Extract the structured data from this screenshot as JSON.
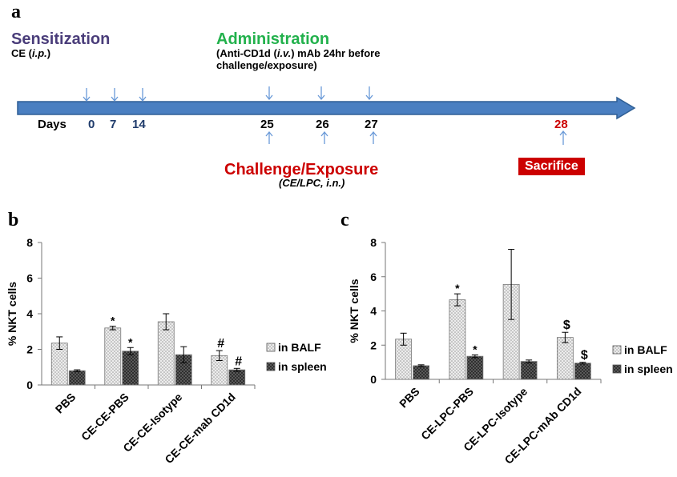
{
  "panel_a": {
    "letter": "a",
    "sensitization_title": "Sensitization",
    "sensitization_route_prefix": "CE (",
    "sensitization_route_italic": "i.p.",
    "sensitization_route_suffix": ")",
    "administration_title": "Administration",
    "administration_line1_a": "(Anti-CD1d (",
    "administration_line1_italic": "i.v.",
    "administration_line1_b": ") mAb 24hr before",
    "administration_line2": "challenge/exposure)",
    "days_label": "Days",
    "sensitization_days": [
      "0",
      "7",
      "14"
    ],
    "challenge_days": [
      "25",
      "26",
      "27"
    ],
    "sacrifice_day": "28",
    "challenge_title": "Challenge/Exposure",
    "challenge_sub": "(CE/LPC, i.n.)",
    "sacrifice_label": "Sacrifice",
    "colors": {
      "arrow_fill": "#4a7fc1",
      "arrow_stroke": "#2f5f95",
      "tick_arrow": "#6a9ad8"
    }
  },
  "panel_b": {
    "letter": "b"
  },
  "panel_c": {
    "letter": "c"
  },
  "chart_data": [
    {
      "type": "bar",
      "panel": "b",
      "ylabel": "% NKT cells",
      "ylim": [
        0,
        8
      ],
      "yticks": [
        "0",
        "2",
        "4",
        "6",
        "8"
      ],
      "categories": [
        "PBS",
        "CE-CE-PBS",
        "CE-CE-Isotype",
        "CE-CE-mab CD1d"
      ],
      "series": [
        {
          "name": "in BALF",
          "values": [
            2.35,
            3.2,
            3.55,
            1.65
          ],
          "errors": [
            0.35,
            0.1,
            0.45,
            0.28
          ],
          "annotations": [
            "",
            "*",
            "",
            "#"
          ]
        },
        {
          "name": "in spleen",
          "values": [
            0.8,
            1.9,
            1.7,
            0.85
          ],
          "errors": [
            0.05,
            0.2,
            0.45,
            0.08
          ],
          "annotations": [
            "",
            "*",
            "",
            "#"
          ]
        }
      ],
      "legend_position": "right",
      "colors": {
        "balf": "#d6d6d6",
        "spleen": "#5a5a5a"
      }
    },
    {
      "type": "bar",
      "panel": "c",
      "ylabel": "% NKT cells",
      "ylim": [
        0,
        8
      ],
      "yticks": [
        "0",
        "2",
        "4",
        "6",
        "8"
      ],
      "categories": [
        "PBS",
        "CE-LPC-PBS",
        "CE-LPC-Isotype",
        "CE-LPC-mAb CD1d"
      ],
      "series": [
        {
          "name": "in BALF",
          "values": [
            2.35,
            4.65,
            5.55,
            2.45
          ],
          "errors": [
            0.35,
            0.35,
            2.05,
            0.3
          ],
          "annotations": [
            "",
            "*",
            "",
            "$"
          ]
        },
        {
          "name": "in spleen",
          "values": [
            0.8,
            1.35,
            1.05,
            0.95
          ],
          "errors": [
            0.05,
            0.08,
            0.08,
            0.05
          ],
          "annotations": [
            "",
            "*",
            "",
            "$"
          ]
        }
      ],
      "legend_position": "right",
      "colors": {
        "balf": "#d6d6d6",
        "spleen": "#5a5a5a"
      }
    }
  ]
}
